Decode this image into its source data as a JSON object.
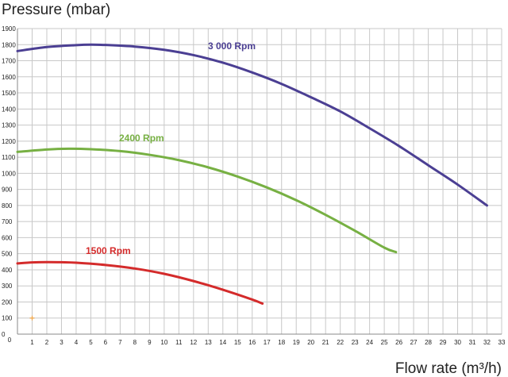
{
  "chart_data": {
    "type": "line",
    "ylabel": "Pressure (mbar)",
    "xlabel": "Flow rate (m³/h)",
    "xlim": [
      0,
      33
    ],
    "ylim": [
      0,
      1900
    ],
    "x_ticks": [
      1,
      2,
      3,
      4,
      5,
      6,
      7,
      8,
      9,
      10,
      11,
      12,
      13,
      14,
      15,
      16,
      17,
      18,
      19,
      20,
      21,
      22,
      23,
      24,
      25,
      26,
      27,
      28,
      29,
      30,
      31,
      32,
      33
    ],
    "y_ticks": [
      0,
      100,
      200,
      300,
      400,
      500,
      600,
      700,
      800,
      900,
      1000,
      1100,
      1200,
      1300,
      1400,
      1500,
      1600,
      1700,
      1800,
      1900
    ],
    "grid": true,
    "series": [
      {
        "name": "3 000 Rpm",
        "color": "#4b3f93",
        "x": [
          0,
          2,
          4,
          5,
          6,
          8,
          10,
          12,
          14,
          16,
          18,
          20,
          22,
          24,
          26,
          28,
          30,
          32
        ],
        "y": [
          1760,
          1785,
          1797,
          1800,
          1798,
          1788,
          1768,
          1735,
          1688,
          1627,
          1556,
          1473,
          1385,
          1280,
          1170,
          1050,
          930,
          800
        ]
      },
      {
        "name": "2400 Rpm",
        "color": "#77b043",
        "x": [
          0,
          2,
          3.5,
          5,
          7,
          9,
          11,
          13,
          15,
          17,
          19,
          21,
          23,
          25,
          25.8
        ],
        "y": [
          1133,
          1148,
          1153,
          1150,
          1138,
          1115,
          1082,
          1037,
          980,
          912,
          833,
          742,
          643,
          538,
          510
        ]
      },
      {
        "name": "1500 Rpm",
        "color": "#d42b2b",
        "x": [
          0,
          1,
          2,
          3,
          4,
          6,
          8,
          10,
          12,
          14,
          16,
          16.7
        ],
        "y": [
          440,
          446,
          448,
          447,
          444,
          430,
          408,
          375,
          330,
          276,
          215,
          190
        ]
      }
    ],
    "labels": [
      {
        "text": "3 000 Rpm",
        "color": "#4b3f93"
      },
      {
        "text": "2400 Rpm",
        "color": "#77b043"
      },
      {
        "text": "1500 Rpm",
        "color": "#d42b2b"
      }
    ],
    "marker": {
      "x": 1,
      "y": 100,
      "color": "#f0a64a"
    }
  }
}
